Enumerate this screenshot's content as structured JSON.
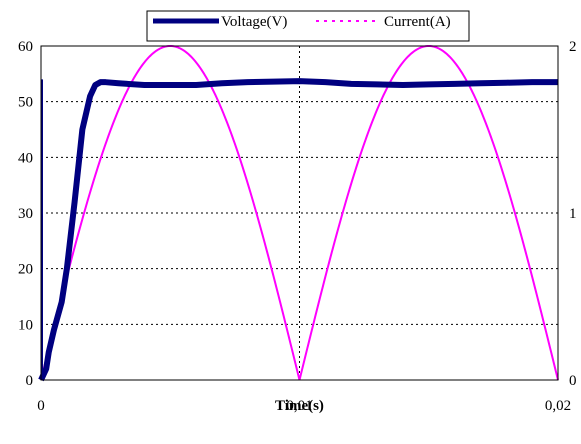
{
  "chart_data": {
    "type": "line",
    "xlabel": "Time(s)",
    "x_ticks": [
      "0",
      "0,01",
      "0,02"
    ],
    "y_left_ticks": [
      "0",
      "10",
      "20",
      "30",
      "40",
      "50",
      "60"
    ],
    "y_right_ticks": [
      "0",
      "1",
      "2"
    ],
    "xlim": [
      0,
      0.02
    ],
    "ylim_left": [
      0,
      60
    ],
    "ylim_right": [
      0,
      2
    ],
    "grid": "dotted, both axes",
    "legend_position": "top-center",
    "series": [
      {
        "name": "Voltage(V)",
        "axis": "left",
        "color": "#000080",
        "style": "solid-thick",
        "x": [
          0,
          0.0001,
          0.0002,
          0.0003,
          0.0005,
          0.0008,
          0.001,
          0.0013,
          0.0016,
          0.0019,
          0.0021,
          0.0023,
          0.0025,
          0.003,
          0.004,
          0.005,
          0.006,
          0.007,
          0.008,
          0.009,
          0.01,
          0.011,
          0.012,
          0.013,
          0.014,
          0.015,
          0.016,
          0.017,
          0.018,
          0.019,
          0.02
        ],
        "values": [
          0,
          1,
          2,
          5,
          9,
          14,
          20,
          32,
          45,
          51,
          53,
          53.5,
          53.5,
          53.3,
          53,
          53,
          53,
          53.3,
          53.5,
          53.6,
          53.7,
          53.5,
          53.2,
          53.1,
          53,
          53.1,
          53.2,
          53.3,
          53.4,
          53.5,
          53.5
        ]
      },
      {
        "name": "Current(A)",
        "axis": "right",
        "color": "#ff00ff",
        "style": "dotted",
        "shape": "|sin(2*pi*50*t)|",
        "peak": 2,
        "x": [
          0,
          0.005,
          0.01,
          0.015,
          0.02
        ],
        "values": [
          0,
          2,
          0,
          2,
          0
        ]
      }
    ]
  }
}
